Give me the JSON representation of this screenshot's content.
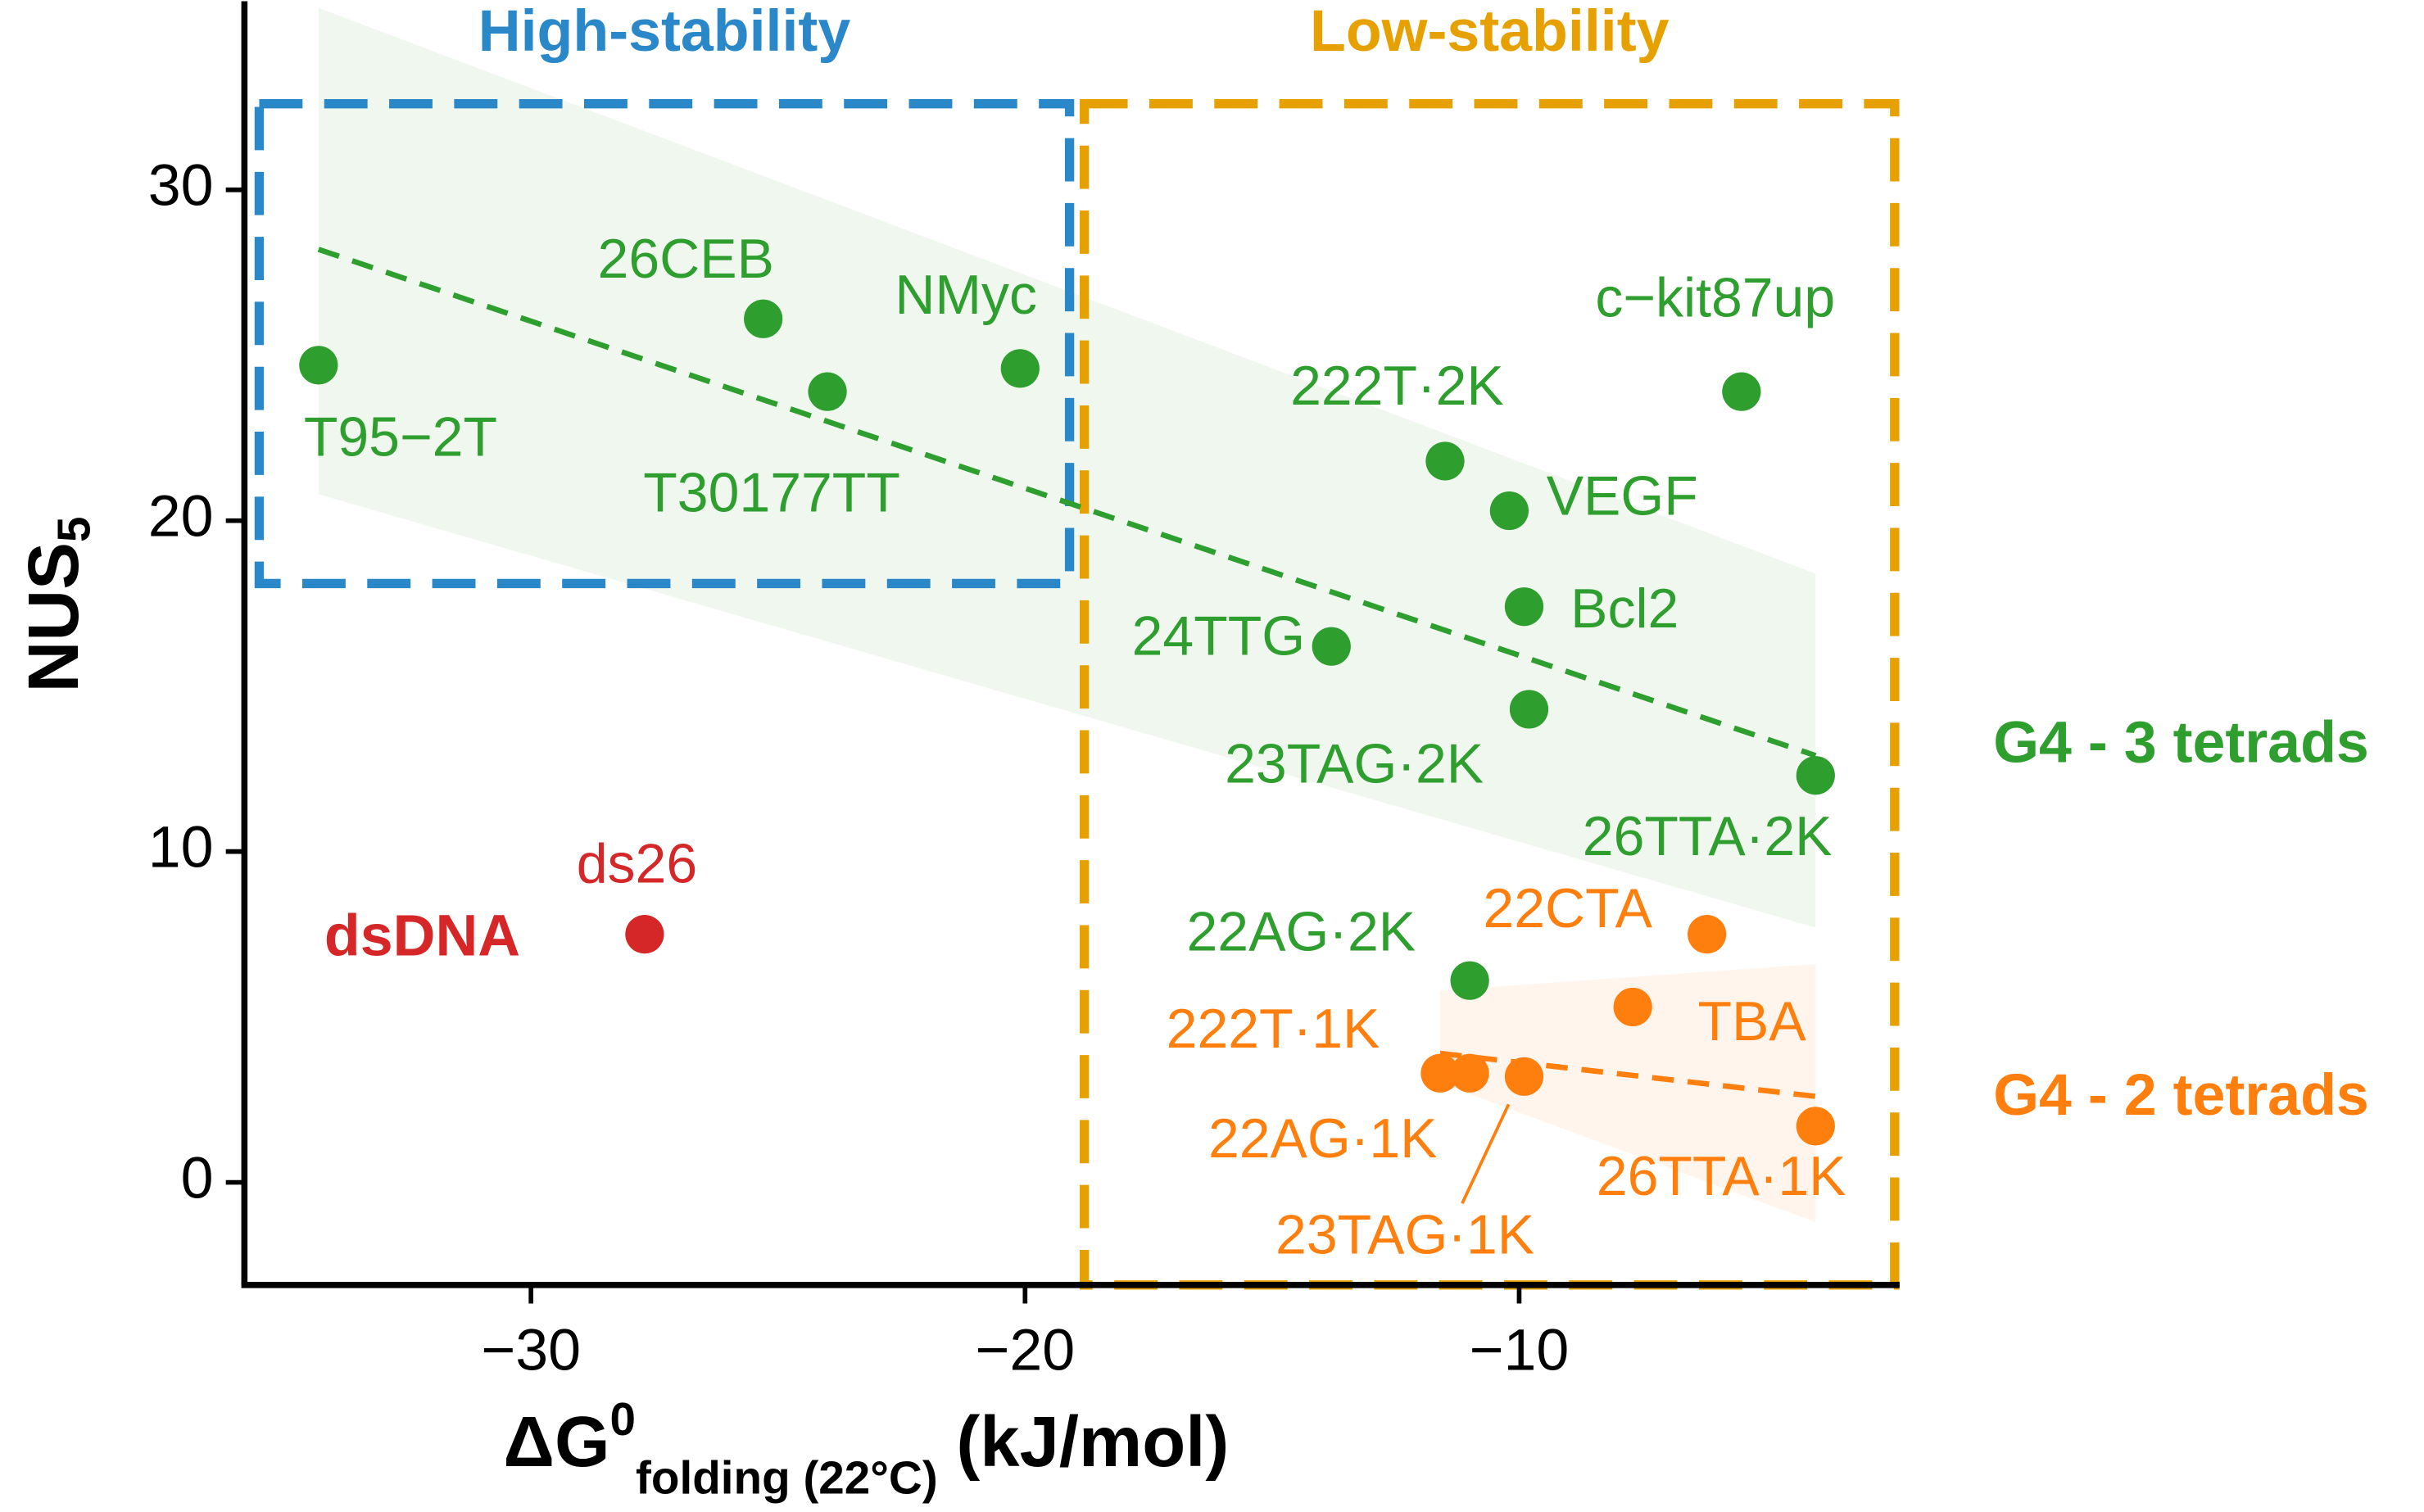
{
  "chart_data": {
    "type": "scatter",
    "x_label": {
      "main": "ΔG",
      "sup": "0",
      "sub": "folding (22°C)",
      "unit": "(kJ/mol)"
    },
    "y_label": {
      "main": "NUS",
      "sub": "5"
    },
    "xlim": [
      -35.8,
      -2.3
    ],
    "ylim": [
      -3.1,
      35.7
    ],
    "xticks": [
      {
        "value": -30,
        "label": "−30"
      },
      {
        "value": -20,
        "label": "−20"
      },
      {
        "value": -10,
        "label": "−10"
      }
    ],
    "yticks": [
      0,
      10,
      20,
      30
    ],
    "regions": [
      {
        "label": "High-stability",
        "color": "#2a88c8",
        "xlim": [
          -35.5,
          -19.1
        ],
        "ylim": [
          18.1,
          32.6
        ]
      },
      {
        "label": "Low-stability",
        "color": "#e6a100",
        "xlim": [
          -18.8,
          -2.4
        ],
        "ylim": [
          -3.1,
          32.6
        ]
      }
    ],
    "series": [
      {
        "name": "G4 - 3 tetrads",
        "color": "#2e9e2e",
        "labels": [
          "T95−2T",
          "26CEB",
          "T30177TT",
          "NMyc",
          "c−kit87up",
          "222T·2K",
          "VEGF",
          "Bcl2",
          "24TTG",
          "23TAG·2K",
          "26TTA·2K",
          "22AG·2K"
        ],
        "x": [
          -34.3,
          -25.3,
          -24.0,
          -20.1,
          -5.5,
          -11.5,
          -10.2,
          -9.9,
          -13.8,
          -9.8,
          -4.0,
          -11.0
        ],
        "values": [
          24.7,
          26.1,
          23.9,
          24.6,
          23.9,
          21.8,
          20.3,
          17.4,
          16.2,
          14.3,
          12.3,
          6.1
        ],
        "fit": {
          "x": [
            -34.3,
            -4.0
          ],
          "y": [
            28.2,
            12.9
          ],
          "lower": [
            20.8,
            7.7
          ],
          "upper": [
            35.5,
            18.4
          ]
        }
      },
      {
        "name": "G4 - 2 tetrads",
        "color": "#ff7f0e",
        "labels": [
          "22CTA",
          "TBA",
          "222T·1K",
          "22AG·1K",
          "23TAG·1K",
          "26TTA·1K"
        ],
        "x": [
          -6.2,
          -7.7,
          -11.6,
          -11.0,
          -9.9,
          -4.0
        ],
        "values": [
          7.5,
          5.3,
          3.3,
          3.3,
          3.2,
          1.7
        ],
        "fit": {
          "x": [
            -11.6,
            -4.0
          ],
          "y": [
            3.9,
            2.6
          ],
          "lower": [
            3.0,
            -1.2
          ],
          "upper": [
            5.8,
            6.6
          ]
        }
      },
      {
        "name": "dsDNA",
        "color": "#d62728",
        "labels": [
          "ds26"
        ],
        "x": [
          -27.7
        ],
        "values": [
          7.5
        ]
      }
    ]
  }
}
